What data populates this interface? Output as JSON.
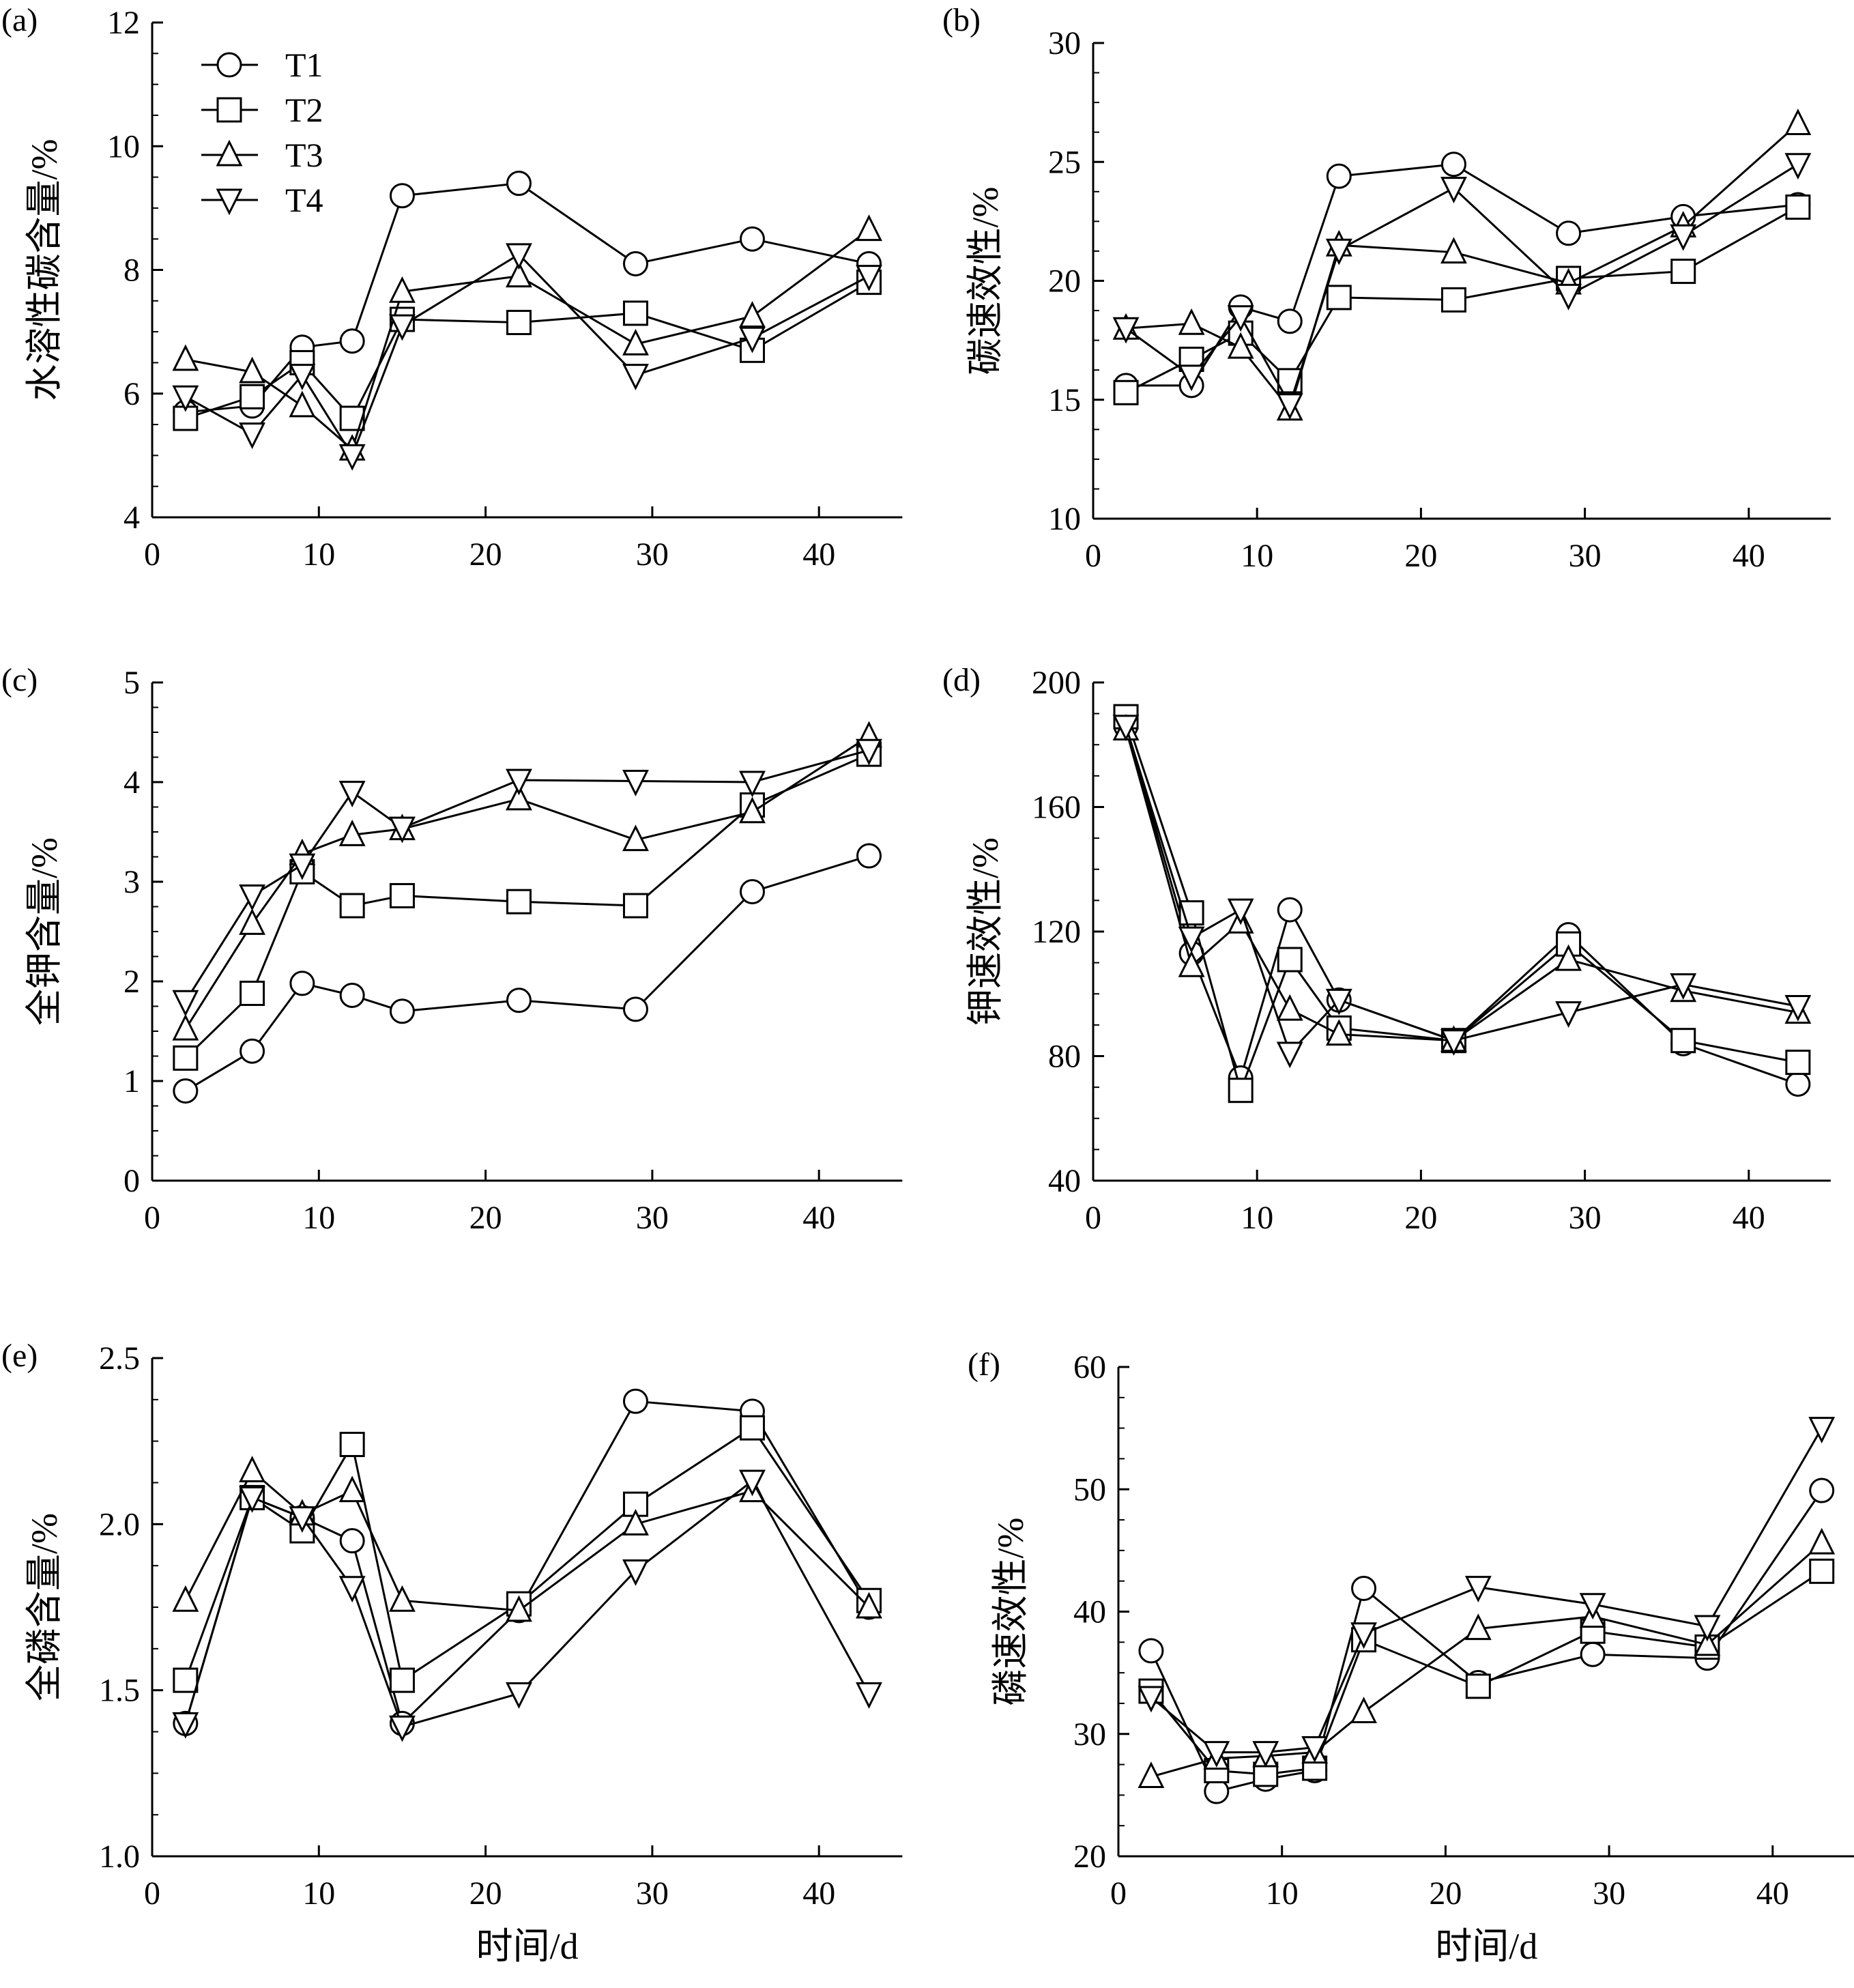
{
  "chart_data": [
    {
      "panel_label": "(a)",
      "type": "line",
      "ylabel": "水溶性碳含量/%",
      "xlabel": "",
      "xlim": [
        0,
        45
      ],
      "ylim": [
        4,
        12
      ],
      "xticks": [
        0,
        10,
        20,
        30,
        40
      ],
      "yticks": [
        4,
        6,
        8,
        10,
        12
      ],
      "legend": "top-left",
      "x": [
        2,
        6,
        9,
        12,
        15,
        22,
        29,
        36,
        43
      ],
      "series": [
        {
          "name": "T1",
          "marker": "circle",
          "values": [
            5.7,
            5.8,
            6.75,
            6.85,
            9.2,
            9.4,
            8.1,
            8.5,
            8.1
          ]
        },
        {
          "name": "T2",
          "marker": "square",
          "values": [
            5.6,
            5.95,
            6.5,
            5.6,
            7.2,
            7.15,
            7.3,
            6.7,
            7.8
          ]
        },
        {
          "name": "T3",
          "marker": "triangle-up",
          "values": [
            6.55,
            6.35,
            5.8,
            5.1,
            7.65,
            7.9,
            6.8,
            7.25,
            8.65
          ]
        },
        {
          "name": "T4",
          "marker": "triangle-down",
          "values": [
            5.95,
            5.35,
            6.3,
            5.0,
            7.1,
            8.25,
            6.3,
            6.9,
            7.9
          ]
        }
      ]
    },
    {
      "panel_label": "(b)",
      "type": "line",
      "ylabel": "碳速效性/%",
      "xlabel": "",
      "xlim": [
        0,
        45
      ],
      "ylim": [
        10,
        30
      ],
      "xticks": [
        0,
        10,
        20,
        30,
        40
      ],
      "yticks": [
        10,
        15,
        20,
        25,
        30
      ],
      "x": [
        2,
        6,
        9,
        12,
        15,
        22,
        29,
        36,
        43
      ],
      "series": [
        {
          "name": "T1",
          "marker": "circle",
          "values": [
            15.6,
            15.6,
            18.9,
            18.3,
            24.4,
            24.9,
            22.0,
            22.7,
            23.2
          ]
        },
        {
          "name": "T2",
          "marker": "square",
          "values": [
            15.3,
            16.7,
            17.8,
            15.8,
            19.3,
            19.2,
            20.1,
            20.4,
            23.1
          ]
        },
        {
          "name": "T3",
          "marker": "triangle-up",
          "values": [
            18.0,
            18.2,
            17.2,
            14.6,
            21.5,
            21.2,
            19.9,
            22.3,
            26.6
          ]
        },
        {
          "name": "T4",
          "marker": "triangle-down",
          "values": [
            18.0,
            16.0,
            18.5,
            14.8,
            21.3,
            23.9,
            19.4,
            21.9,
            24.9
          ]
        }
      ]
    },
    {
      "panel_label": "(c)",
      "type": "line",
      "ylabel": "全钾含量/%",
      "xlabel": "",
      "xlim": [
        0,
        45
      ],
      "ylim": [
        0,
        5
      ],
      "xticks": [
        0,
        10,
        20,
        30,
        40
      ],
      "yticks": [
        0,
        1,
        2,
        3,
        4,
        5
      ],
      "x": [
        2,
        6,
        9,
        12,
        15,
        22,
        29,
        36,
        43
      ],
      "series": [
        {
          "name": "T1",
          "marker": "circle",
          "values": [
            0.9,
            1.3,
            1.98,
            1.86,
            1.7,
            1.81,
            1.72,
            2.9,
            3.26
          ]
        },
        {
          "name": "T2",
          "marker": "square",
          "values": [
            1.23,
            1.88,
            3.1,
            2.76,
            2.86,
            2.8,
            2.76,
            3.77,
            4.28
          ]
        },
        {
          "name": "T3",
          "marker": "triangle-up",
          "values": [
            1.52,
            2.58,
            3.28,
            3.47,
            3.53,
            3.83,
            3.42,
            3.7,
            4.46
          ]
        },
        {
          "name": "T4",
          "marker": "triangle-down",
          "values": [
            1.8,
            2.86,
            3.17,
            3.9,
            3.54,
            4.02,
            4.01,
            4.0,
            4.32
          ]
        }
      ]
    },
    {
      "panel_label": "(d)",
      "type": "line",
      "ylabel": "钾速效性/%",
      "xlabel": "",
      "xlim": [
        0,
        45
      ],
      "ylim": [
        40,
        200
      ],
      "xticks": [
        0,
        10,
        20,
        30,
        40
      ],
      "yticks": [
        40,
        80,
        120,
        160,
        200
      ],
      "x": [
        2,
        6,
        9,
        12,
        15,
        22,
        29,
        36,
        43
      ],
      "series": [
        {
          "name": "T1",
          "marker": "circle",
          "values": [
            186,
            113,
            73,
            127,
            98,
            85,
            119,
            84,
            71
          ]
        },
        {
          "name": "T2",
          "marker": "square",
          "values": [
            189,
            126,
            69,
            111,
            89,
            85,
            116,
            85,
            78
          ]
        },
        {
          "name": "T3",
          "marker": "triangle-up",
          "values": [
            185,
            109,
            123,
            95,
            87,
            85,
            111,
            101,
            94
          ]
        },
        {
          "name": "T4",
          "marker": "triangle-down",
          "values": [
            186,
            118,
            127,
            81,
            98,
            85,
            94,
            103,
            96
          ]
        }
      ]
    },
    {
      "panel_label": "(e)",
      "type": "line",
      "ylabel": "全磷含量/%",
      "xlabel": "时间/d",
      "xlim": [
        0,
        45
      ],
      "ylim": [
        1.0,
        2.5
      ],
      "xticks": [
        0,
        10,
        20,
        30,
        40
      ],
      "yticks": [
        "1.0",
        "1.5",
        "2.0",
        "2.5"
      ],
      "x": [
        2,
        6,
        9,
        12,
        15,
        22,
        29,
        36,
        43
      ],
      "series": [
        {
          "name": "T1",
          "marker": "circle",
          "values": [
            1.4,
            2.08,
            2.02,
            1.95,
            1.4,
            1.74,
            2.37,
            2.34,
            1.75
          ]
        },
        {
          "name": "T2",
          "marker": "square",
          "values": [
            1.53,
            2.08,
            1.98,
            2.24,
            1.53,
            1.76,
            2.06,
            2.29,
            1.77
          ]
        },
        {
          "name": "T3",
          "marker": "triangle-up",
          "values": [
            1.77,
            2.16,
            2.03,
            2.1,
            1.77,
            1.74,
            2.0,
            2.1,
            1.75
          ]
        },
        {
          "name": "T4",
          "marker": "triangle-down",
          "values": [
            1.4,
            2.08,
            2.02,
            1.81,
            1.39,
            1.49,
            1.86,
            2.13,
            1.49
          ]
        }
      ]
    },
    {
      "panel_label": "(f)",
      "type": "line",
      "ylabel": "磷速效性/%",
      "xlabel": "时间/d",
      "xlim": [
        0,
        45
      ],
      "ylim": [
        20,
        60
      ],
      "xticks": [
        0,
        10,
        20,
        30,
        40
      ],
      "yticks": [
        20,
        30,
        40,
        50,
        60
      ],
      "x": [
        2,
        6,
        9,
        12,
        15,
        22,
        29,
        36,
        43
      ],
      "series": [
        {
          "name": "T1",
          "marker": "circle",
          "values": [
            36.8,
            25.3,
            26.3,
            27.0,
            41.9,
            34.2,
            36.5,
            36.2,
            49.9
          ]
        },
        {
          "name": "T2",
          "marker": "square",
          "values": [
            33.5,
            27.0,
            26.7,
            27.2,
            37.7,
            33.9,
            38.4,
            37.1,
            43.3
          ]
        },
        {
          "name": "T3",
          "marker": "triangle-up",
          "values": [
            26.5,
            28.0,
            28.2,
            28.5,
            31.8,
            38.6,
            39.6,
            37.3,
            45.6
          ]
        },
        {
          "name": "T4",
          "marker": "triangle-down",
          "values": [
            33.0,
            28.5,
            28.5,
            28.9,
            38.2,
            42.0,
            40.6,
            38.8,
            55.0
          ]
        }
      ]
    }
  ]
}
